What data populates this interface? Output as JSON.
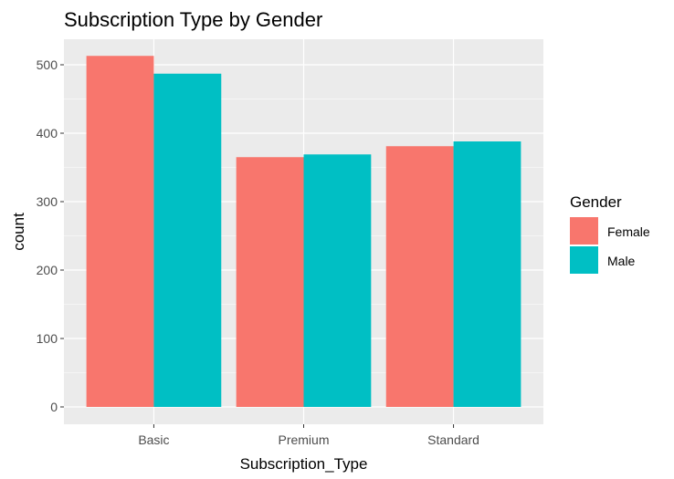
{
  "chart_data": {
    "type": "bar",
    "title": "Subscription Type by Gender",
    "xlabel": "Subscription_Type",
    "ylabel": "count",
    "categories": [
      "Basic",
      "Premium",
      "Standard"
    ],
    "series": [
      {
        "name": "Female",
        "values": [
          513,
          365,
          381
        ],
        "color": "#F8766D"
      },
      {
        "name": "Male",
        "values": [
          487,
          369,
          388
        ],
        "color": "#00BFC4"
      }
    ],
    "ylim": [
      0,
      540
    ],
    "yticks": [
      0,
      100,
      200,
      300,
      400,
      500
    ],
    "legend_title": "Gender",
    "legend_position": "right",
    "grid": true,
    "panel_background": "#EBEBEB"
  }
}
